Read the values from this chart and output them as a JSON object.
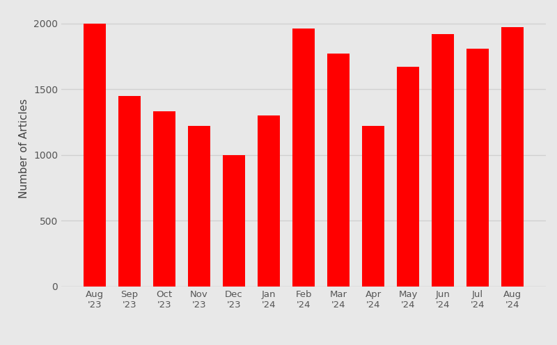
{
  "categories": [
    "Aug\n'23",
    "Sep\n'23",
    "Oct\n'23",
    "Nov\n'23",
    "Dec\n'23",
    "Jan\n'24",
    "Feb\n'24",
    "Mar\n'24",
    "Apr\n'24",
    "May\n'24",
    "Jun\n'24",
    "Jul\n'24",
    "Aug\n'24"
  ],
  "values": [
    2000,
    1450,
    1330,
    1220,
    1000,
    1300,
    1960,
    1770,
    1220,
    1670,
    1920,
    1810,
    1970
  ],
  "bar_color": "#ff0000",
  "ylabel": "Number of Articles",
  "ylim": [
    0,
    2100
  ],
  "yticks": [
    0,
    500,
    1000,
    1500,
    2000
  ],
  "background_color": "#e8e8e8",
  "grid_color": "#d0d0d0",
  "tick_label_color": "#555555",
  "ylabel_color": "#444444",
  "bar_width": 0.65
}
